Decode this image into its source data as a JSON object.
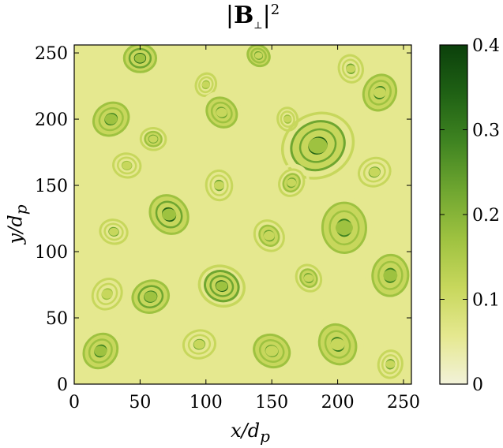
{
  "chart_data": {
    "type": "heatmap",
    "title": "|B⊥|²",
    "xlabel": "x/d_p",
    "ylabel": "y/d_p",
    "xlim": [
      0,
      256
    ],
    "ylim": [
      0,
      256
    ],
    "xticks": [
      "0",
      "50",
      "100",
      "150",
      "200",
      "250"
    ],
    "yticks": [
      "0",
      "50",
      "100",
      "150",
      "200",
      "250"
    ],
    "colorbar": {
      "min": 0,
      "max": 0.4,
      "ticks": [
        "0",
        "0.1",
        "0.2",
        "0.3",
        "0.4"
      ],
      "colormap": [
        "#f2f2d9",
        "#e5e88f",
        "#c7d75c",
        "#9ec240",
        "#6fa630",
        "#3f8421",
        "#1f6114",
        "#0b400b"
      ]
    },
    "structures": [
      {
        "x": 50,
        "y": 246,
        "r": 14,
        "v": 0.33
      },
      {
        "x": 140,
        "y": 248,
        "r": 10,
        "v": 0.25
      },
      {
        "x": 210,
        "y": 238,
        "r": 12,
        "v": 0.22
      },
      {
        "x": 100,
        "y": 226,
        "r": 10,
        "v": 0.18
      },
      {
        "x": 28,
        "y": 200,
        "r": 16,
        "v": 0.3
      },
      {
        "x": 60,
        "y": 185,
        "r": 11,
        "v": 0.23
      },
      {
        "x": 112,
        "y": 205,
        "r": 14,
        "v": 0.26
      },
      {
        "x": 162,
        "y": 200,
        "r": 10,
        "v": 0.2
      },
      {
        "x": 232,
        "y": 220,
        "r": 16,
        "v": 0.27
      },
      {
        "x": 185,
        "y": 180,
        "r": 24,
        "v": 0.36
      },
      {
        "x": 40,
        "y": 165,
        "r": 12,
        "v": 0.2
      },
      {
        "x": 72,
        "y": 128,
        "r": 18,
        "v": 0.34
      },
      {
        "x": 110,
        "y": 150,
        "r": 13,
        "v": 0.21
      },
      {
        "x": 165,
        "y": 152,
        "r": 12,
        "v": 0.24
      },
      {
        "x": 228,
        "y": 160,
        "r": 14,
        "v": 0.22
      },
      {
        "x": 30,
        "y": 115,
        "r": 12,
        "v": 0.21
      },
      {
        "x": 148,
        "y": 112,
        "r": 14,
        "v": 0.23
      },
      {
        "x": 205,
        "y": 118,
        "r": 22,
        "v": 0.3
      },
      {
        "x": 25,
        "y": 68,
        "r": 14,
        "v": 0.2
      },
      {
        "x": 58,
        "y": 66,
        "r": 16,
        "v": 0.32
      },
      {
        "x": 112,
        "y": 74,
        "r": 15,
        "v": 0.38
      },
      {
        "x": 178,
        "y": 80,
        "r": 12,
        "v": 0.24
      },
      {
        "x": 240,
        "y": 82,
        "r": 18,
        "v": 0.29
      },
      {
        "x": 20,
        "y": 25,
        "r": 16,
        "v": 0.3
      },
      {
        "x": 95,
        "y": 30,
        "r": 14,
        "v": 0.22
      },
      {
        "x": 150,
        "y": 25,
        "r": 16,
        "v": 0.25
      },
      {
        "x": 200,
        "y": 30,
        "r": 18,
        "v": 0.27
      },
      {
        "x": 240,
        "y": 15,
        "r": 12,
        "v": 0.22
      }
    ]
  }
}
